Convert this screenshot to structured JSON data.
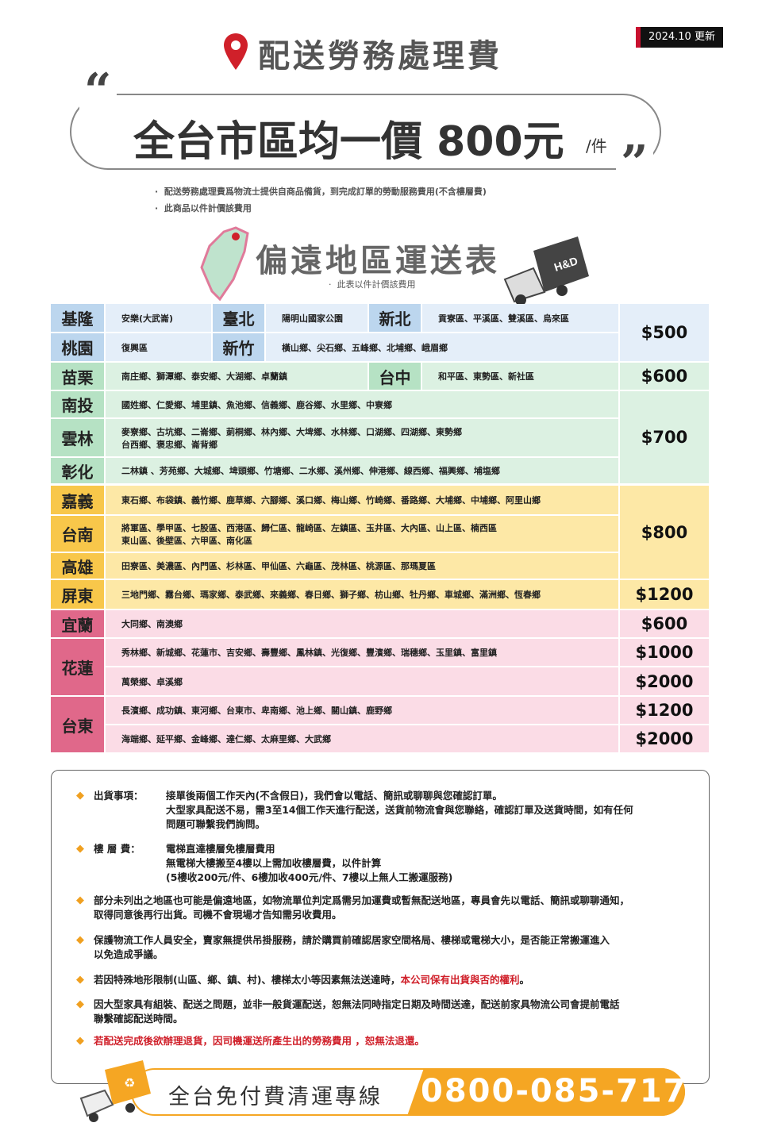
{
  "header": {
    "title": "配送勞務處理費",
    "update_badge": "2024.10 更新"
  },
  "banner": {
    "price_text": "全台市區均一價 800元",
    "unit": "/件"
  },
  "notes_top": [
    "配送勞務處理費爲物流士提供自商品備貨，到完成訂單的勞動服務費用(不含樓層費)",
    "此商品以件計價該費用"
  ],
  "remote": {
    "title": "偏遠地區運送表",
    "subtitle": "此表以件計價該費用",
    "truck_logo": "H&D"
  },
  "colors": {
    "blue_label": "#bcd6ee",
    "blue_cell": "#e4eef9",
    "green_label": "#b6e2c4",
    "green_cell": "#dcf1e2",
    "yellow_label": "#f8c74a",
    "yellow_cell": "#fde8a6",
    "pink_label": "#e0688a",
    "pink_cell": "#fbdce6",
    "accent_orange": "#f5a623",
    "accent_red": "#d0202a"
  },
  "table": {
    "rows": [
      {
        "theme": "blue",
        "segments": [
          {
            "label": "基隆",
            "text": "安樂(大武崙)"
          },
          {
            "label": "臺北",
            "text": "陽明山國家公園"
          },
          {
            "label": "新北",
            "text": "貢寮區、平溪區、雙溪區、烏來區"
          }
        ]
      },
      {
        "theme": "blue",
        "segments": [
          {
            "label": "桃園",
            "text": "復興區"
          },
          {
            "label": "新竹",
            "text": "橫山鄉、尖石鄉、五峰鄉、北埔鄉、峨眉鄉"
          }
        ]
      },
      {
        "theme": "green",
        "segments": [
          {
            "label": "苗栗",
            "text": "南庄鄉、獅潭鄉、泰安鄉、大湖鄉、卓蘭鎮"
          },
          {
            "label": "台中",
            "text": "和平區、東勢區、新社區"
          }
        ]
      },
      {
        "theme": "green",
        "segments": [
          {
            "label": "南投",
            "text": "國姓鄉、仁愛鄉、埔里鎮、魚池鄉、信義鄉、鹿谷鄉、水里鄉、中寮鄉"
          }
        ]
      },
      {
        "theme": "green",
        "segments": [
          {
            "label": "雲林",
            "text": "麥寮鄉、古坑鄉、二崙鄉、莿桐鄉、林內鄉、大埤鄉、水林鄉、口湖鄉、四湖鄉、東勢鄉",
            "text2": "台西鄉、褒忠鄉、崙背鄉"
          }
        ]
      },
      {
        "theme": "green",
        "segments": [
          {
            "label": "彰化",
            "text": "二林鎮 、芳苑鄉、大城鄉、埤頭鄉、竹塘鄉、二水鄉、溪州鄉、伸港鄉、線西鄉、福興鄉、埔塩鄉"
          }
        ]
      },
      {
        "theme": "yellow",
        "segments": [
          {
            "label": "嘉義",
            "text": "東石鄉、布袋鎮、義竹鄉、鹿草鄉、六腳鄉、溪口鄉、梅山鄉、竹崎鄉、番路鄉、大埔鄉、中埔鄉、阿里山鄉"
          }
        ]
      },
      {
        "theme": "yellow",
        "segments": [
          {
            "label": "台南",
            "text": "將軍區、學甲區、七股區、西港區、歸仁區、龍崎區、左鎮區、玉井區、大內區、山上區、楠西區",
            "text2": "東山區、後壁區、六甲區、南化區"
          }
        ]
      },
      {
        "theme": "yellow",
        "segments": [
          {
            "label": "高雄",
            "text": "田寮區、美濃區、內門區、杉林區、甲仙區、六龜區、茂林區、桃源區、那瑪夏區"
          }
        ]
      },
      {
        "theme": "yellow",
        "segments": [
          {
            "label": "屏東",
            "text": "三地門鄉、霧台鄉、瑪家鄉、泰武鄉、來義鄉、春日鄉、獅子鄉、枋山鄉、牡丹鄉、車城鄉、滿洲鄉、恆春鄉"
          }
        ]
      },
      {
        "theme": "pink",
        "segments": [
          {
            "label": "宜蘭",
            "text": "大同鄉、南澳鄉"
          }
        ]
      },
      {
        "theme": "pink",
        "segments": [
          {
            "label": "花蓮",
            "text": "秀林鄉、新城鄉、花蓮市、吉安鄉、壽豐鄉、鳳林鎮、光復鄉、豐濱鄉、瑞穗鄉、玉里鎮、富里鎮"
          }
        ]
      },
      {
        "theme": "pink",
        "segments": [
          {
            "label": "",
            "text": "萬榮鄉、卓溪鄉"
          }
        ]
      },
      {
        "theme": "pink",
        "segments": [
          {
            "label": "台東",
            "text": "長濱鄉、成功鎮、東河鄉、台東市、卑南鄉、池上鄉、關山鎮、鹿野鄉"
          }
        ]
      },
      {
        "theme": "pink",
        "segments": [
          {
            "label": "",
            "text": "海端鄉、延平鄉、金峰鄉、達仁鄉、太麻里鄉、大武鄉"
          }
        ]
      }
    ],
    "prices": [
      {
        "value": "$500",
        "rows": [
          0,
          1
        ]
      },
      {
        "value": "$600",
        "rows": [
          2,
          2
        ]
      },
      {
        "value": "$700",
        "rows": [
          3,
          5
        ]
      },
      {
        "value": "$800",
        "rows": [
          6,
          8
        ]
      },
      {
        "value": "$1200",
        "rows": [
          9,
          9
        ]
      },
      {
        "value": "$600",
        "rows": [
          10,
          10
        ]
      },
      {
        "value": "$1000",
        "rows": [
          11,
          11
        ]
      },
      {
        "value": "$2000",
        "rows": [
          12,
          12
        ]
      },
      {
        "value": "$1200",
        "rows": [
          13,
          13
        ]
      },
      {
        "value": "$2000",
        "rows": [
          14,
          14
        ]
      }
    ]
  },
  "notes": {
    "shipping_label": "出貨事項：",
    "shipping_lines": [
      "接單後兩個工作天內(不含假日)，我們會以電話、簡訊或聊聊與您確認訂單。",
      "大型家具配送不易，需3至14個工作天進行配送，送貨前物流會與您聯絡，確認訂單及送貨時間，如有任何",
      "問題可聯繫我們詢問。"
    ],
    "floor_label": "樓 層 費：",
    "floor_lines": [
      "電梯直達樓層免樓層費用",
      "無電梯大樓搬至4樓以上需加收樓層費，以件計算",
      "(5樓收200元/件、6樓加收400元/件、7樓以上無人工搬運服務)"
    ],
    "n3": [
      "部分未列出之地區也可能是偏遠地區，如物流單位判定爲需另加運費或暫無配送地區，專員會先以電話、簡訊或聊聊通知，",
      "取得同意後再行出貨。司機不會現場才告知需另收費用。"
    ],
    "n4": [
      "保護物流工作人員安全，賣家無提供吊掛服務，請於購買前確認居家空間格局、樓梯或電梯大小，是否能正常搬運進入",
      "以免造成爭議。"
    ],
    "n5_a": "若因特殊地形限制(山區、鄉、鎮、村)、樓梯太小等因素無法送達時，",
    "n5_b": "本公司保有出貨與否的權利",
    "n5_c": "。",
    "n6": [
      "因大型家具有組裝、配送之問題，並非一般貨運配送，恕無法同時指定日期及時間送達，配送前家具物流公司會提前電話",
      "聯繫確認配送時間。"
    ],
    "n7": "若配送完成後欲辦理退貨，因司機運送所產生出的勞務費用 ，恕無法退還。"
  },
  "hotline": {
    "label": "全台免付費清運專線",
    "number": "0800-085-717"
  }
}
